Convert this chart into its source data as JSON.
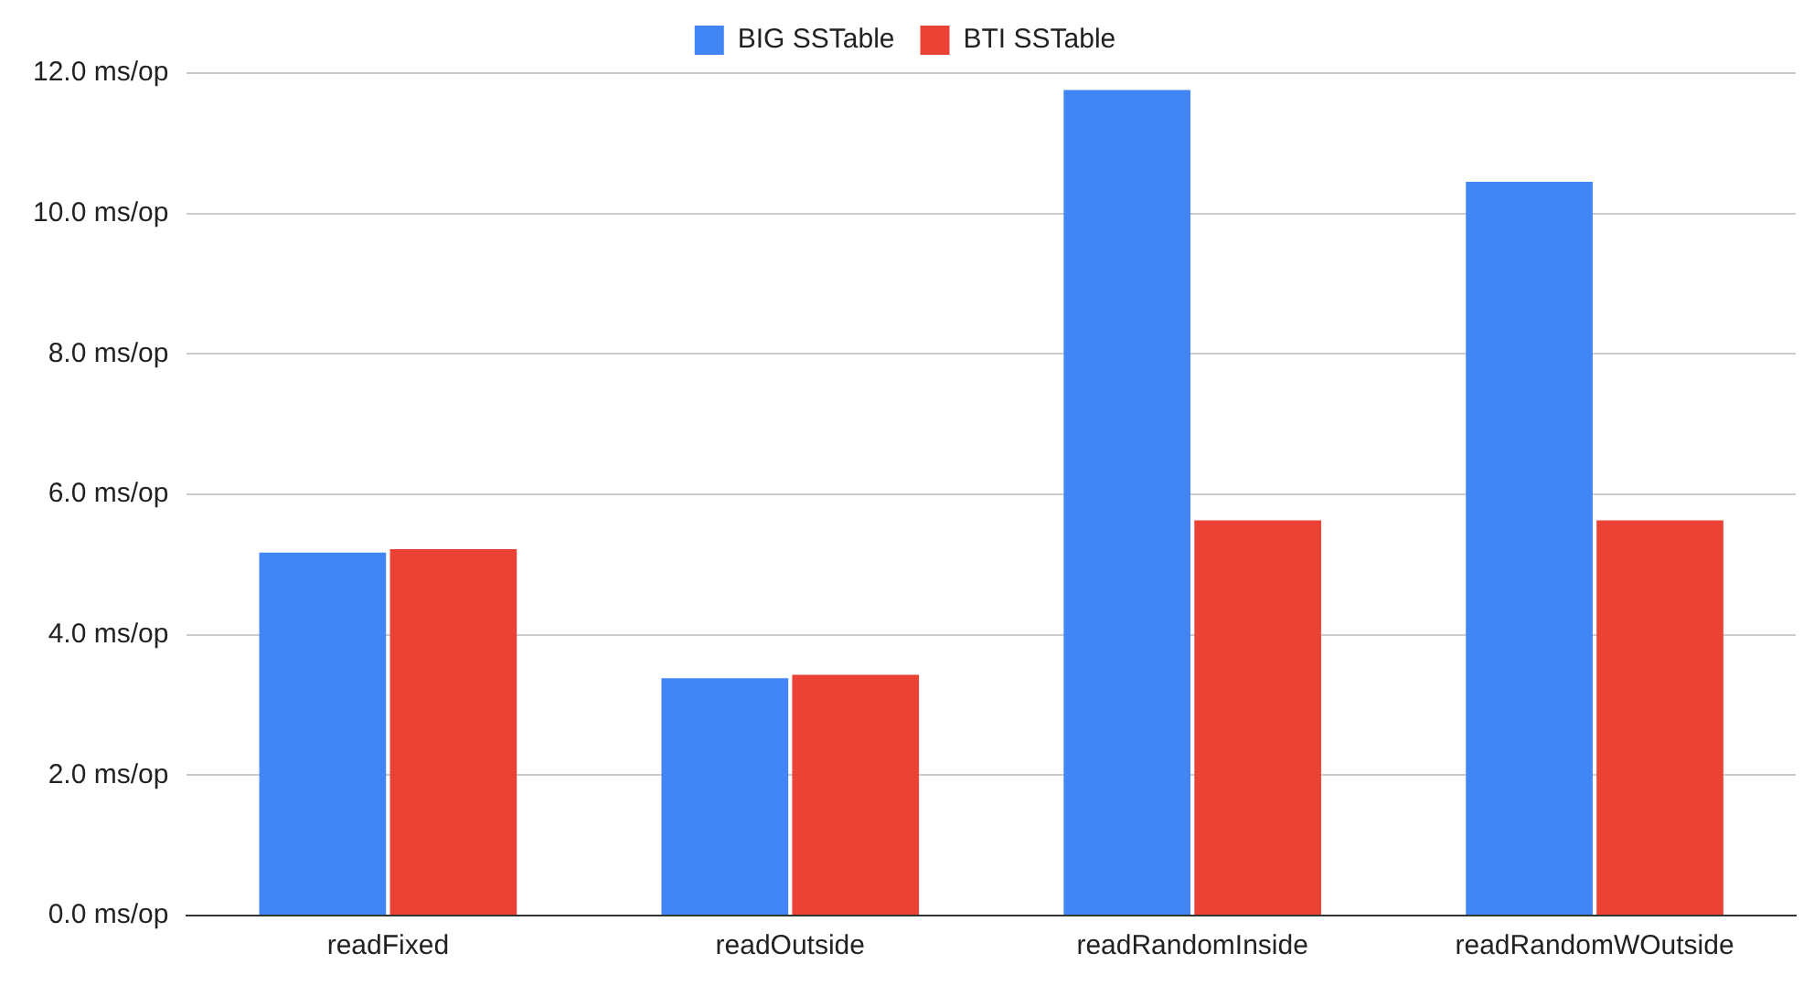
{
  "chart_data": {
    "type": "bar",
    "categories": [
      "readFixed",
      "readOutside",
      "readRandomInside",
      "readRandomWOutside"
    ],
    "series": [
      {
        "name": "BIG SSTable",
        "color": "#4285f4",
        "values": [
          5.17,
          3.38,
          11.76,
          10.45
        ]
      },
      {
        "name": "BTI SSTable",
        "color": "#ea4335",
        "values": [
          5.22,
          3.43,
          5.63,
          5.63
        ]
      }
    ],
    "ylim": [
      0,
      12
    ],
    "yticks": [
      {
        "value": 0,
        "label": "0.0 ms/op"
      },
      {
        "value": 2,
        "label": "2.0 ms/op"
      },
      {
        "value": 4,
        "label": "4.0 ms/op"
      },
      {
        "value": 6,
        "label": "6.0 ms/op"
      },
      {
        "value": 8,
        "label": "8.0 ms/op"
      },
      {
        "value": 10,
        "label": "10.0 ms/op"
      },
      {
        "value": 12,
        "label": "12.0 ms/op"
      }
    ],
    "grid": "y",
    "legend": "top"
  }
}
